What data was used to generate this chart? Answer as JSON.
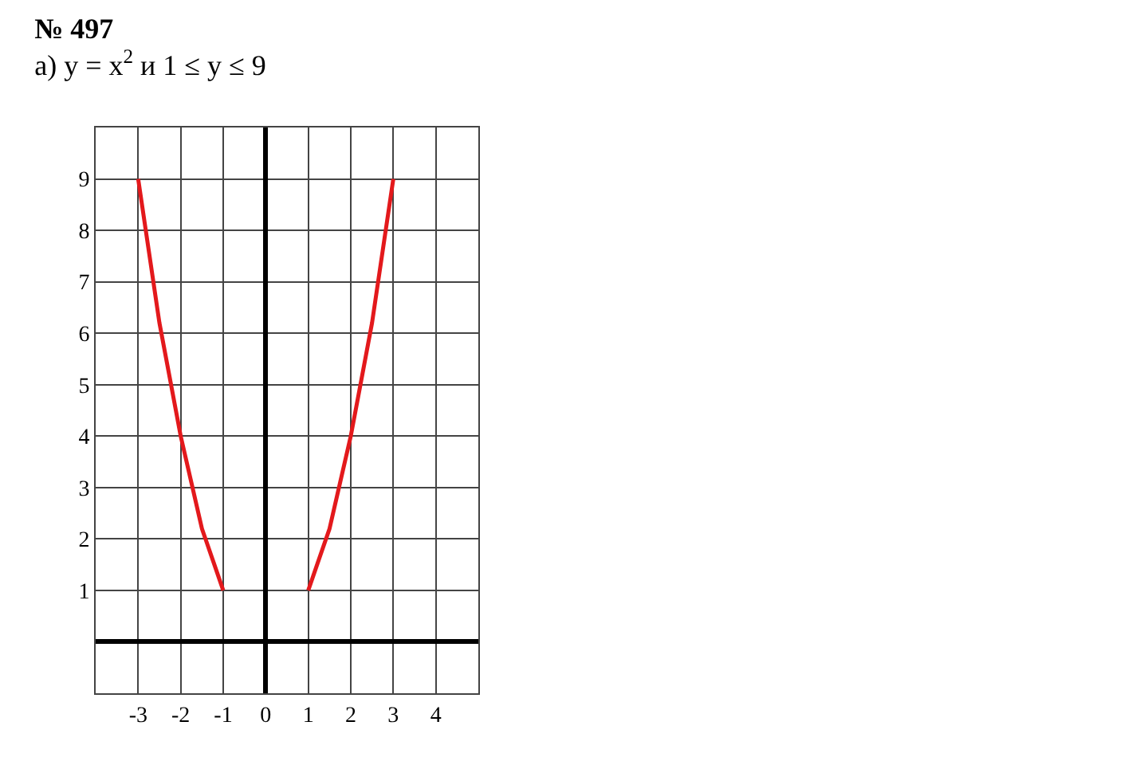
{
  "chart_data": {
    "type": "line",
    "title": "№ 497",
    "subtitle": "а) y = x$^{2}$ и 1 ≤ y ≤ 9",
    "series": [
      {
        "color": "#e3191c",
        "x": [
          -3,
          -2.75,
          -2.5,
          -2.25,
          -2,
          -1.75,
          -1.5,
          -1.25,
          -1
        ],
        "values": [
          9,
          7.6,
          6.2,
          5.1,
          4,
          3.1,
          2.2,
          1.6,
          1
        ]
      },
      {
        "color": "#e3191c",
        "x": [
          1,
          1.25,
          1.5,
          1.75,
          2,
          2.25,
          2.5,
          2.75,
          3
        ],
        "values": [
          1,
          1.6,
          2.2,
          3.1,
          4,
          5.1,
          6.2,
          7.6,
          9
        ]
      }
    ],
    "xlim": [
      -4,
      5
    ],
    "xticks": [
      -3,
      -2,
      -1,
      0,
      1,
      2,
      3,
      4
    ],
    "ylim": [
      -1,
      10
    ],
    "yticks": [
      1,
      2,
      3,
      4,
      5,
      6,
      7,
      8,
      9
    ],
    "grid": true,
    "marker": "none",
    "line_style": "solid"
  }
}
